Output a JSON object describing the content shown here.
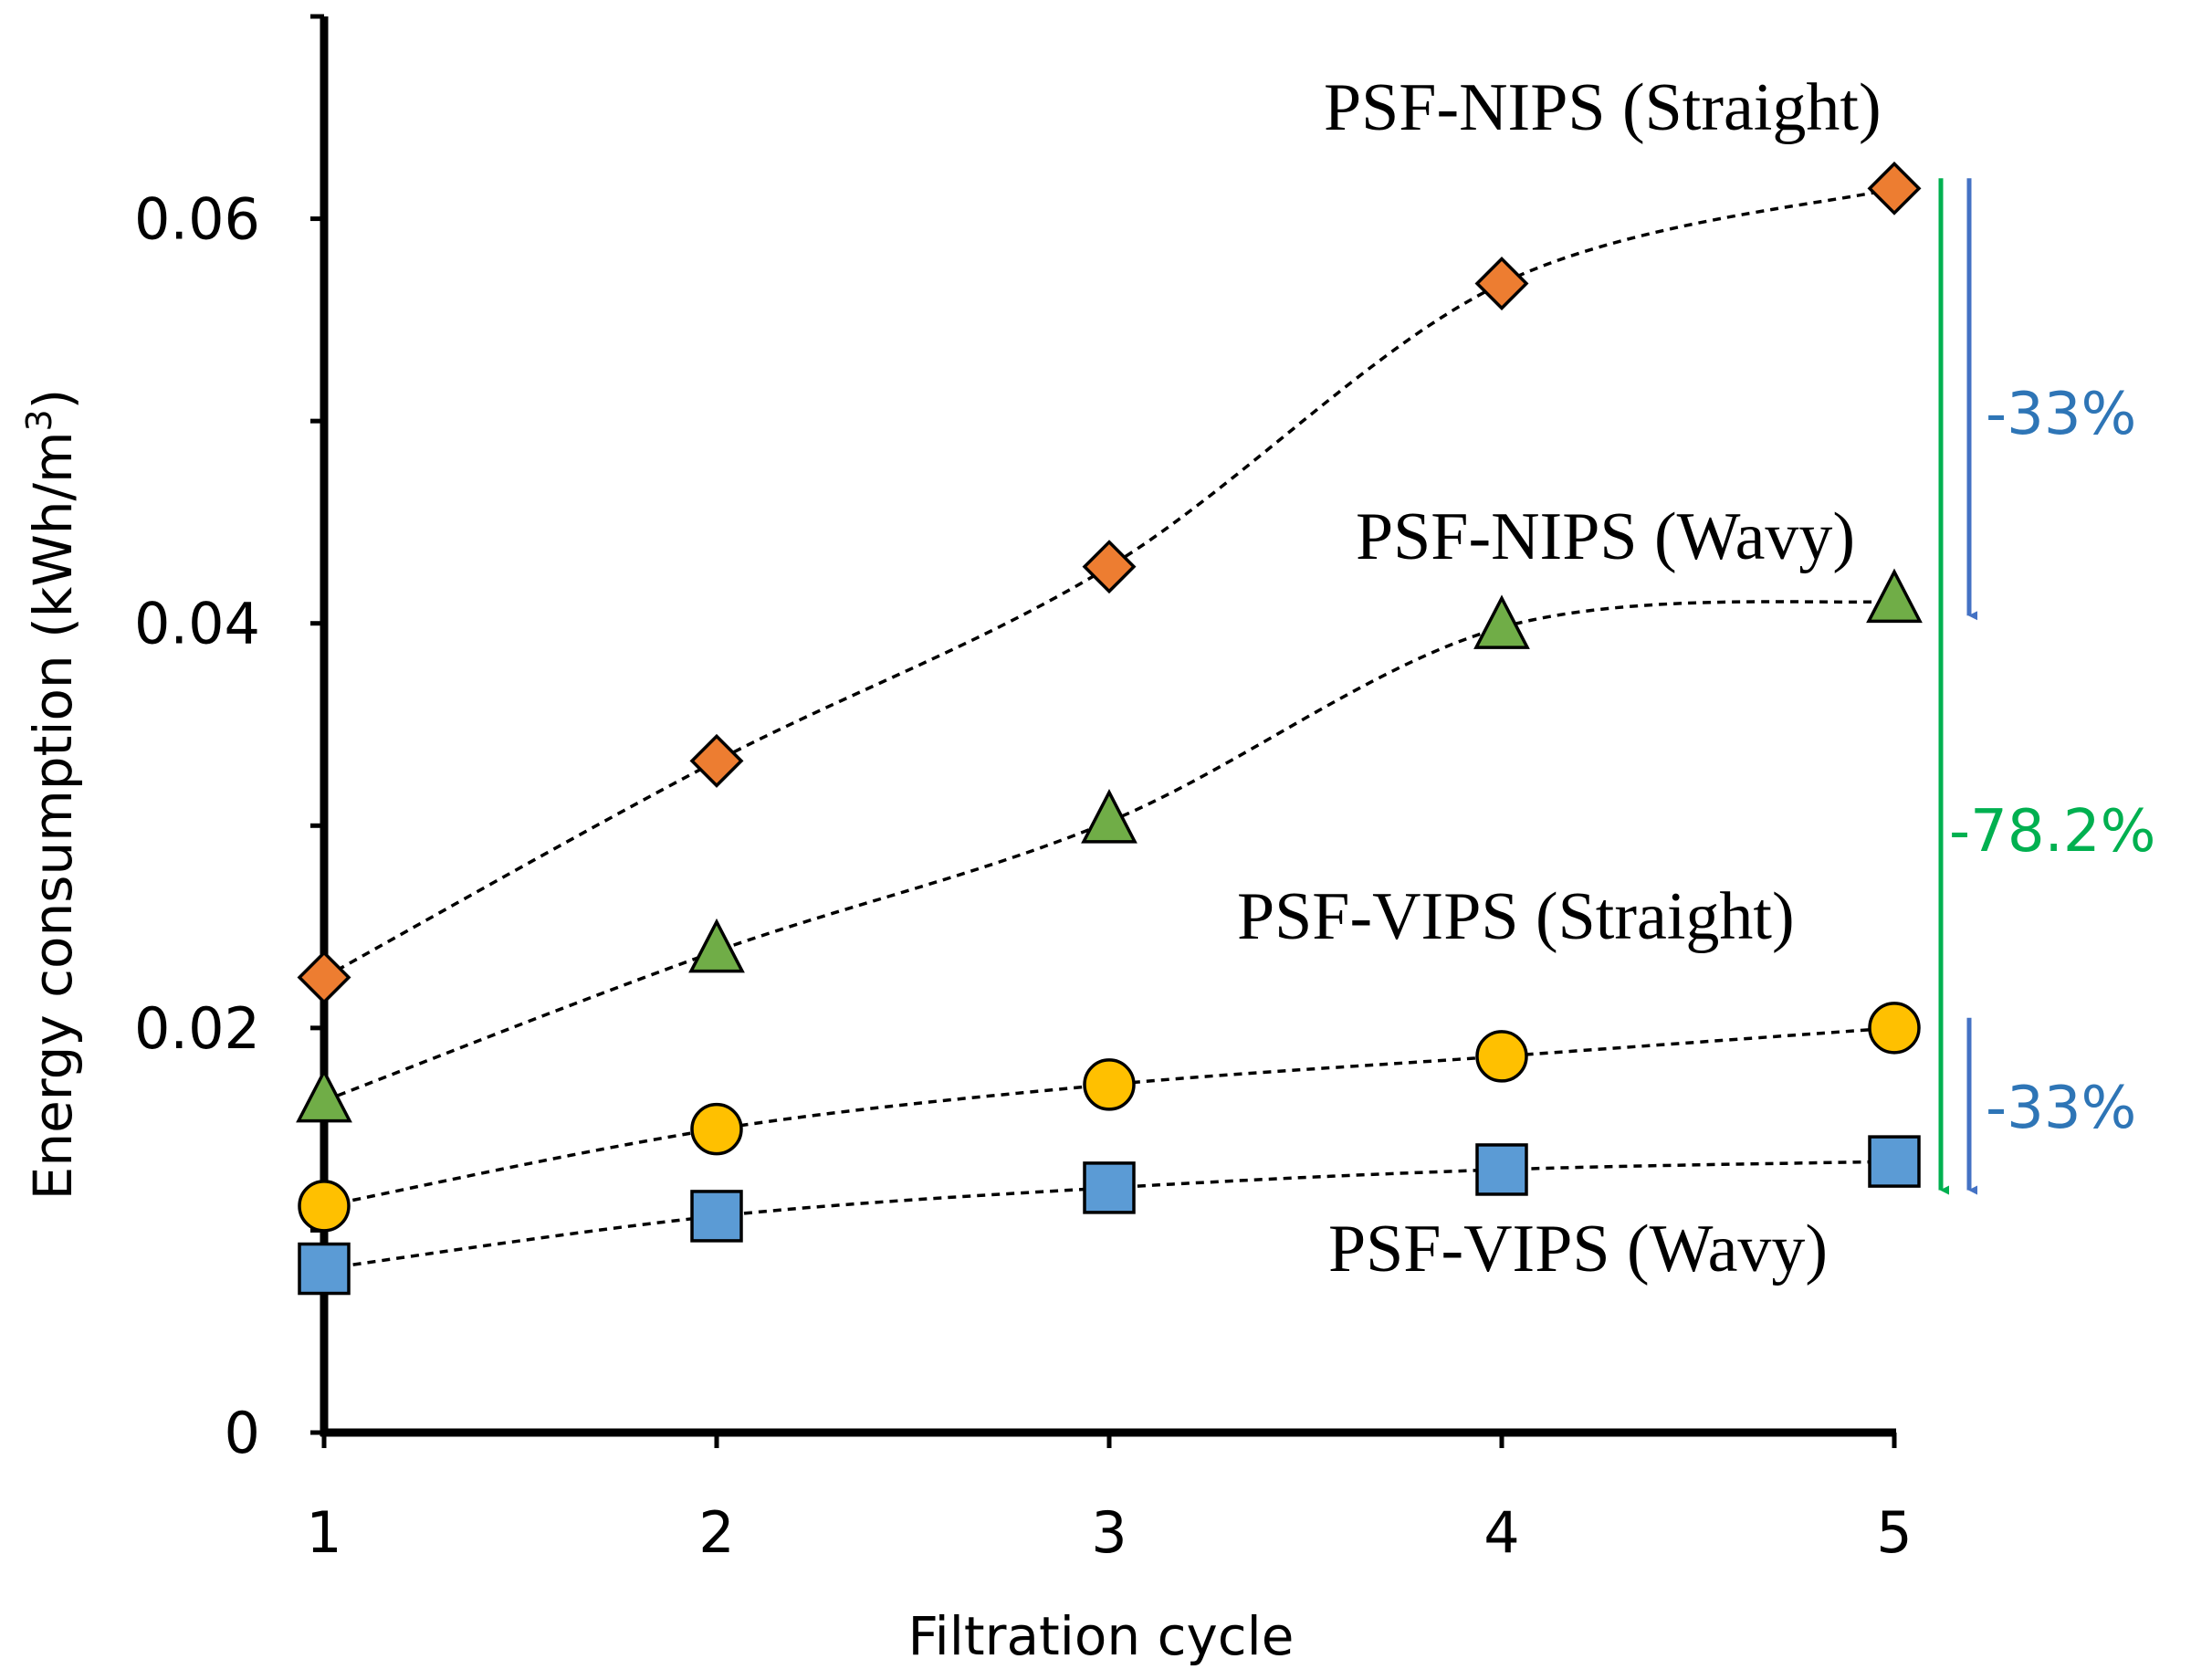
{
  "chart_data": {
    "type": "line",
    "xlabel": "Filtration cycle",
    "ylabel_main": "Energy consumption (kWh/m",
    "ylabel_sup": "3",
    "ylabel_close": ")",
    "x": [
      1,
      2,
      3,
      4,
      5
    ],
    "x_tick_labels": [
      "1",
      "2",
      "3",
      "4",
      "5"
    ],
    "ylim": [
      0,
      0.07
    ],
    "y_ticks": [
      0,
      0.02,
      0.04,
      0.06
    ],
    "y_tick_labels": [
      "0",
      "0.02",
      "0.04",
      "0.06"
    ],
    "series": [
      {
        "name": "PSF-NIPS (Straight)",
        "marker": "diamond",
        "color": "#ED7D31",
        "values": [
          0.0225,
          0.0332,
          0.0428,
          0.0568,
          0.0615
        ]
      },
      {
        "name": "PSF-NIPS (Wavy)",
        "marker": "triangle",
        "color": "#70AD47",
        "values": [
          0.0164,
          0.0238,
          0.0302,
          0.0398,
          0.0411
        ]
      },
      {
        "name": "PSF-VIPS (Straight)",
        "marker": "circle",
        "color": "#FFC000",
        "values": [
          0.0112,
          0.015,
          0.0172,
          0.0186,
          0.02
        ]
      },
      {
        "name": "PSF-VIPS (Wavy)",
        "marker": "square",
        "color": "#5B9BD5",
        "values": [
          0.0081,
          0.0107,
          0.0121,
          0.013,
          0.0134
        ]
      }
    ],
    "annotations": [
      {
        "text": "-33%",
        "color": "#2E75B6",
        "from_value": 0.062,
        "to_value": 0.0402
      },
      {
        "text": "-78.2%",
        "color": "#00B050",
        "from_value": 0.062,
        "to_value": 0.0118
      },
      {
        "text": "-33%",
        "color": "#2E75B6",
        "from_value": 0.0205,
        "to_value": 0.0118
      }
    ]
  }
}
